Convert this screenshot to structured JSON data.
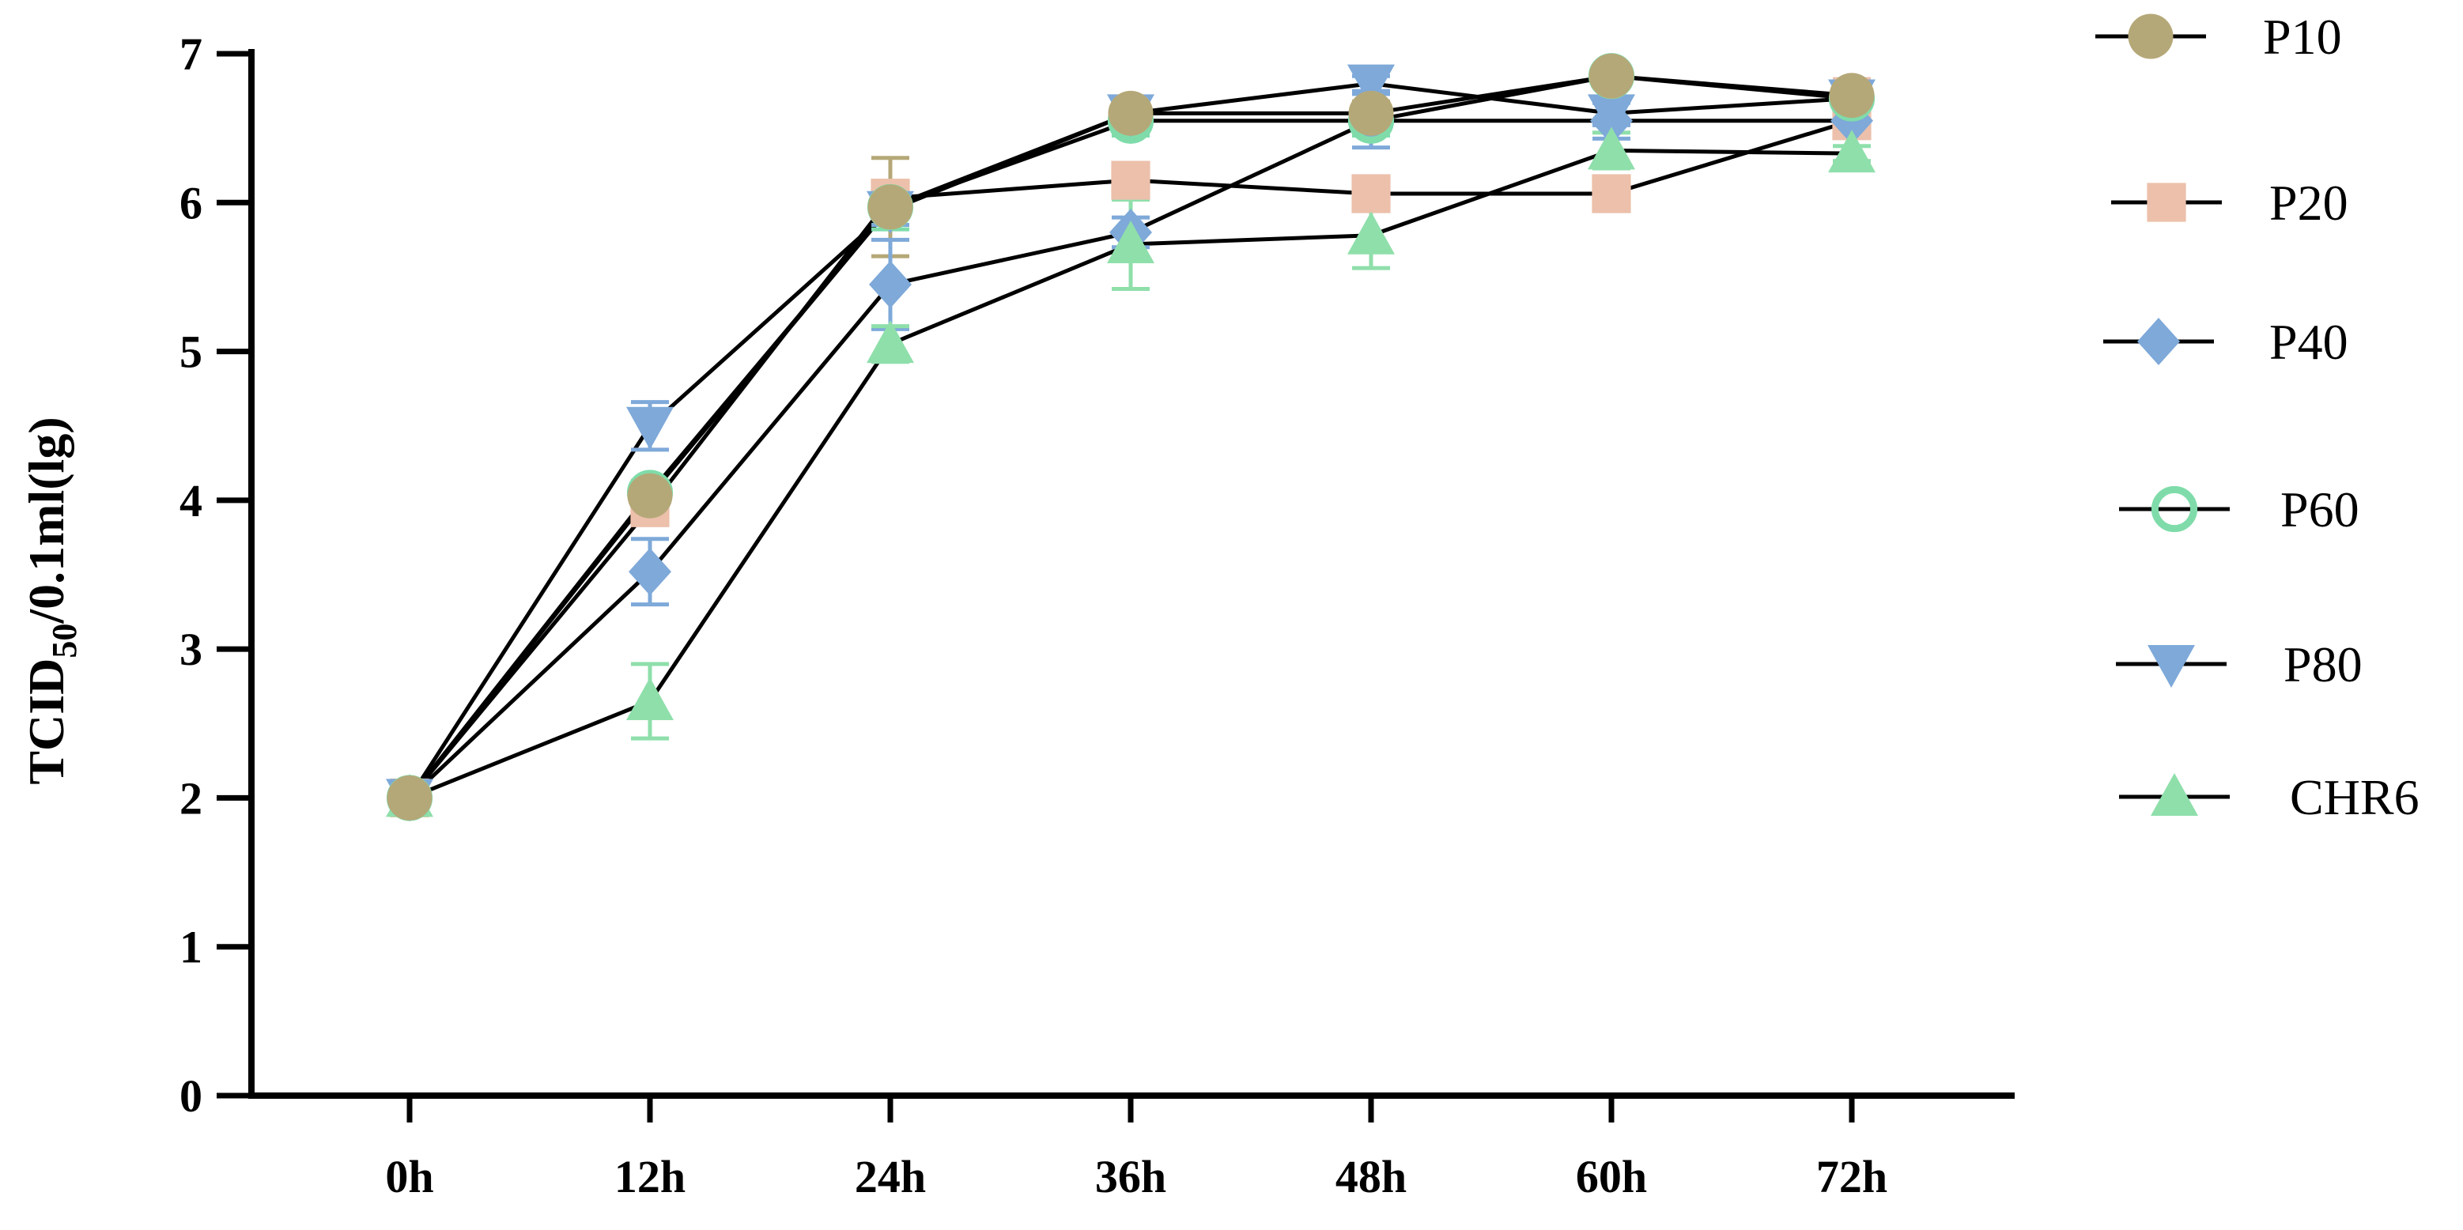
{
  "chart_data": {
    "type": "line",
    "title": "",
    "xlabel": "",
    "ylabel_main": "TCID",
    "ylabel_sub": "50",
    "ylabel_rest": "/0.1ml(lg)",
    "categories": [
      "0h",
      "12h",
      "24h",
      "36h",
      "48h",
      "60h",
      "72h"
    ],
    "ylim": [
      0,
      7
    ],
    "yticks": [
      "0",
      "1",
      "2",
      "3",
      "4",
      "5",
      "6",
      "7"
    ],
    "legend_position": "right",
    "series": [
      {
        "name": "P10",
        "marker": "circle",
        "color": "#b5a878",
        "values": [
          2.0,
          4.03,
          5.97,
          6.6,
          6.6,
          6.85,
          6.72
        ],
        "errors": [
          0,
          0.1,
          0.33,
          0.08,
          0.08,
          0.05,
          0.08
        ]
      },
      {
        "name": "P20",
        "marker": "square",
        "color": "#ecc0ab",
        "values": [
          2.0,
          3.95,
          6.03,
          6.15,
          6.06,
          6.06,
          6.55
        ],
        "errors": [
          0,
          0.1,
          0.08,
          0.05,
          0.05,
          0.05,
          0.28
        ]
      },
      {
        "name": "P40",
        "marker": "diamond",
        "color": "#7ea9d9",
        "values": [
          2.0,
          3.52,
          5.45,
          5.8,
          6.55,
          6.55,
          6.55
        ],
        "errors": [
          0,
          0.22,
          0.3,
          0.1,
          0.18,
          0.12,
          0.1
        ]
      },
      {
        "name": "P60",
        "marker": "open-circle",
        "color": "#7fdcaa",
        "values": [
          2.0,
          4.05,
          5.97,
          6.55,
          6.55,
          6.85,
          6.7
        ],
        "errors": [
          0,
          0.05,
          0.15,
          0.1,
          0.1,
          0.05,
          0.05
        ]
      },
      {
        "name": "P80",
        "marker": "triangle-down",
        "color": "#7ea9d9",
        "values": [
          2.0,
          4.5,
          5.95,
          6.6,
          6.8,
          6.6,
          6.7
        ],
        "errors": [
          0,
          0.16,
          0.1,
          0.1,
          0.05,
          0.08,
          0.08
        ]
      },
      {
        "name": "CHR6",
        "marker": "triangle-up",
        "color": "#8fdfab",
        "values": [
          2.0,
          2.65,
          5.05,
          5.72,
          5.78,
          6.35,
          6.33
        ],
        "errors": [
          0,
          0.25,
          0.12,
          0.3,
          0.22,
          0.12,
          0.05
        ]
      }
    ]
  }
}
